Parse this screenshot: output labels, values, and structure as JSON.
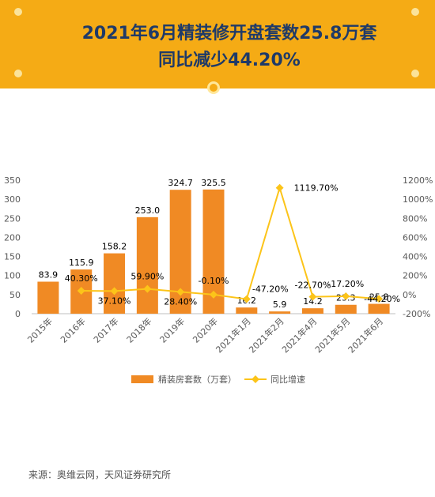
{
  "header": {
    "title_line1": "2021年6月精装修开盘套数25.8万套",
    "title_line2": "同比减少44.20%"
  },
  "colors": {
    "header_bg": "#f5ab15",
    "title": "#1f3a68",
    "bar": "#f08a24",
    "line": "#fcc419"
  },
  "chart_data": {
    "type": "bar",
    "categories": [
      "2015年",
      "2016年",
      "2017年",
      "2018年",
      "2019年",
      "2020年",
      "2021年1月",
      "2021年2月",
      "2021年4月",
      "2021年5月",
      "2021年6月"
    ],
    "series": [
      {
        "name": "精装房套数（万套）",
        "type": "bar",
        "axis": "left",
        "values": [
          83.9,
          115.9,
          158.2,
          253.0,
          324.7,
          325.5,
          16.2,
          5.9,
          14.2,
          23.3,
          25.8
        ],
        "labels": [
          "83.9",
          "115.9",
          "158.2",
          "253.0",
          "324.7",
          "325.5",
          "16.2",
          "5.9",
          "14.2",
          "23.3",
          "25.8"
        ]
      },
      {
        "name": "同比增速",
        "type": "line",
        "axis": "right",
        "values": [
          null,
          40.3,
          37.1,
          59.9,
          28.4,
          -0.1,
          -47.2,
          1119.7,
          -22.7,
          -17.2,
          -44.2
        ],
        "labels": [
          null,
          "40.30%",
          "37.10%",
          "59.90%",
          "28.40%",
          "-0.10%",
          "-47.20%",
          "1119.70%",
          "-22.70%",
          "-17.20%",
          "-44.20%"
        ]
      }
    ],
    "y_left": {
      "min": 0,
      "max": 350,
      "ticks": [
        "0",
        "50",
        "100",
        "150",
        "200",
        "250",
        "300",
        "350"
      ]
    },
    "y_right": {
      "min": -200,
      "max": 1200,
      "ticks": [
        "-200%",
        "0%",
        "200%",
        "400%",
        "600%",
        "800%",
        "1000%",
        "1200%"
      ]
    },
    "legend": {
      "placement": "bottom"
    },
    "grid": false
  },
  "source": "来源：奥维云网，天风证券研究所"
}
